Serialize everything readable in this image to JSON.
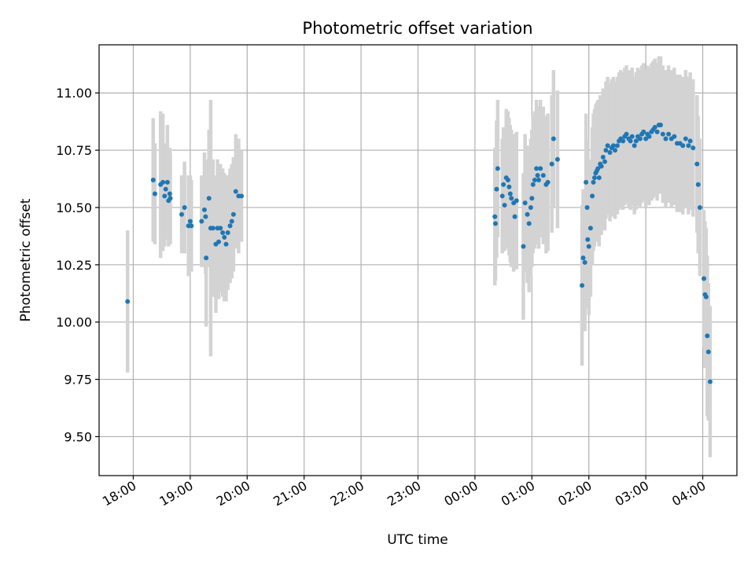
{
  "chart_data": {
    "type": "scatter",
    "title": "Photometric offset variation",
    "xlabel": "UTC time",
    "ylabel": "Photometric offset",
    "xlim": [
      -0.6,
      10.6
    ],
    "ylim": [
      9.33,
      11.21
    ],
    "grid": true,
    "colors": {
      "points": "#1f77b4",
      "errorbars": "#d3d3d3",
      "grid": "#b0b0b0"
    },
    "x_ticks": [
      {
        "v": 0,
        "label": "18:00"
      },
      {
        "v": 1,
        "label": "19:00"
      },
      {
        "v": 2,
        "label": "20:00"
      },
      {
        "v": 3,
        "label": "21:00"
      },
      {
        "v": 4,
        "label": "22:00"
      },
      {
        "v": 5,
        "label": "23:00"
      },
      {
        "v": 6,
        "label": "00:00"
      },
      {
        "v": 7,
        "label": "01:00"
      },
      {
        "v": 8,
        "label": "02:00"
      },
      {
        "v": 9,
        "label": "03:00"
      },
      {
        "v": 10,
        "label": "04:00"
      }
    ],
    "y_ticks": [
      {
        "v": 9.5,
        "label": "9.50"
      },
      {
        "v": 9.75,
        "label": "9.75"
      },
      {
        "v": 10.0,
        "label": "10.00"
      },
      {
        "v": 10.25,
        "label": "10.25"
      },
      {
        "v": 10.5,
        "label": "10.50"
      },
      {
        "v": 10.75,
        "label": "10.75"
      },
      {
        "v": 11.0,
        "label": "11.00"
      }
    ],
    "series": [
      {
        "name": "photometric offset",
        "x_unit": "hours since 18:00 UTC",
        "points": [
          [
            -0.1,
            10.09,
            0.31
          ],
          [
            0.35,
            10.62,
            0.27
          ],
          [
            0.38,
            10.56,
            0.22
          ],
          [
            0.48,
            10.6,
            0.32
          ],
          [
            0.52,
            10.61,
            0.3
          ],
          [
            0.55,
            10.55,
            0.22
          ],
          [
            0.57,
            10.58,
            0.2
          ],
          [
            0.6,
            10.61,
            0.25
          ],
          [
            0.62,
            10.53,
            0.2
          ],
          [
            0.64,
            10.56,
            0.2
          ],
          [
            0.65,
            10.54,
            0.2
          ],
          [
            0.85,
            10.47,
            0.17
          ],
          [
            0.9,
            10.5,
            0.2
          ],
          [
            0.97,
            10.42,
            0.22
          ],
          [
            1.0,
            10.44,
            0.2
          ],
          [
            1.02,
            10.42,
            0.2
          ],
          [
            1.2,
            10.44,
            0.2
          ],
          [
            1.25,
            10.49,
            0.25
          ],
          [
            1.27,
            10.46,
            0.25
          ],
          [
            1.28,
            10.28,
            0.3
          ],
          [
            1.33,
            10.54,
            0.3
          ],
          [
            1.36,
            10.41,
            0.56
          ],
          [
            1.4,
            10.41,
            0.3
          ],
          [
            1.45,
            10.34,
            0.3
          ],
          [
            1.48,
            10.41,
            0.3
          ],
          [
            1.5,
            10.35,
            0.25
          ],
          [
            1.53,
            10.41,
            0.28
          ],
          [
            1.57,
            10.39,
            0.28
          ],
          [
            1.6,
            10.37,
            0.28
          ],
          [
            1.63,
            10.34,
            0.25
          ],
          [
            1.66,
            10.39,
            0.25
          ],
          [
            1.7,
            10.42,
            0.25
          ],
          [
            1.73,
            10.44,
            0.25
          ],
          [
            1.76,
            10.47,
            0.25
          ],
          [
            1.8,
            10.57,
            0.25
          ],
          [
            1.85,
            10.55,
            0.25
          ],
          [
            1.9,
            10.55,
            0.2
          ],
          [
            6.35,
            10.46,
            0.3
          ],
          [
            6.36,
            10.43,
            0.25
          ],
          [
            6.38,
            10.58,
            0.3
          ],
          [
            6.4,
            10.67,
            0.3
          ],
          [
            6.48,
            10.55,
            0.25
          ],
          [
            6.5,
            10.6,
            0.25
          ],
          [
            6.52,
            10.51,
            0.2
          ],
          [
            6.55,
            10.63,
            0.3
          ],
          [
            6.58,
            10.62,
            0.3
          ],
          [
            6.6,
            10.59,
            0.3
          ],
          [
            6.62,
            10.56,
            0.3
          ],
          [
            6.64,
            10.54,
            0.3
          ],
          [
            6.68,
            10.52,
            0.3
          ],
          [
            6.7,
            10.46,
            0.2
          ],
          [
            6.73,
            10.53,
            0.3
          ],
          [
            6.85,
            10.33,
            0.32
          ],
          [
            6.88,
            10.52,
            0.3
          ],
          [
            6.92,
            10.47,
            0.3
          ],
          [
            6.95,
            10.43,
            0.3
          ],
          [
            6.98,
            10.5,
            0.3
          ],
          [
            7.0,
            10.54,
            0.3
          ],
          [
            7.02,
            10.6,
            0.3
          ],
          [
            7.05,
            10.62,
            0.3
          ],
          [
            7.08,
            10.67,
            0.3
          ],
          [
            7.1,
            10.64,
            0.3
          ],
          [
            7.12,
            10.62,
            0.3
          ],
          [
            7.15,
            10.67,
            0.3
          ],
          [
            7.2,
            10.64,
            0.3
          ],
          [
            7.25,
            10.6,
            0.3
          ],
          [
            7.28,
            10.61,
            0.3
          ],
          [
            7.35,
            10.69,
            0.3
          ],
          [
            7.38,
            10.8,
            0.3
          ],
          [
            7.45,
            10.71,
            0.3
          ],
          [
            7.88,
            10.16,
            0.35
          ],
          [
            7.9,
            10.28,
            0.3
          ],
          [
            7.93,
            10.26,
            0.3
          ],
          [
            7.95,
            10.61,
            0.3
          ],
          [
            7.97,
            10.5,
            0.3
          ],
          [
            7.98,
            10.36,
            0.3
          ],
          [
            8.0,
            10.33,
            0.3
          ],
          [
            8.03,
            10.41,
            0.3
          ],
          [
            8.06,
            10.55,
            0.3
          ],
          [
            8.08,
            10.61,
            0.3
          ],
          [
            8.1,
            10.63,
            0.3
          ],
          [
            8.12,
            10.65,
            0.3
          ],
          [
            8.14,
            10.66,
            0.3
          ],
          [
            8.16,
            10.67,
            0.3
          ],
          [
            8.18,
            10.63,
            0.3
          ],
          [
            8.2,
            10.69,
            0.3
          ],
          [
            8.22,
            10.68,
            0.3
          ],
          [
            8.25,
            10.72,
            0.3
          ],
          [
            8.28,
            10.7,
            0.3
          ],
          [
            8.3,
            10.75,
            0.3
          ],
          [
            8.33,
            10.77,
            0.3
          ],
          [
            8.37,
            10.74,
            0.3
          ],
          [
            8.4,
            10.76,
            0.3
          ],
          [
            8.43,
            10.77,
            0.3
          ],
          [
            8.46,
            10.75,
            0.3
          ],
          [
            8.5,
            10.77,
            0.3
          ],
          [
            8.53,
            10.79,
            0.3
          ],
          [
            8.56,
            10.8,
            0.3
          ],
          [
            8.6,
            10.79,
            0.3
          ],
          [
            8.63,
            10.81,
            0.3
          ],
          [
            8.66,
            10.82,
            0.3
          ],
          [
            8.7,
            10.8,
            0.3
          ],
          [
            8.73,
            10.79,
            0.3
          ],
          [
            8.76,
            10.81,
            0.3
          ],
          [
            8.8,
            10.77,
            0.3
          ],
          [
            8.83,
            10.79,
            0.3
          ],
          [
            8.86,
            10.81,
            0.3
          ],
          [
            8.9,
            10.8,
            0.3
          ],
          [
            8.93,
            10.82,
            0.3
          ],
          [
            8.96,
            10.83,
            0.3
          ],
          [
            9.0,
            10.8,
            0.3
          ],
          [
            9.03,
            10.82,
            0.3
          ],
          [
            9.06,
            10.81,
            0.3
          ],
          [
            9.1,
            10.83,
            0.3
          ],
          [
            9.13,
            10.84,
            0.3
          ],
          [
            9.16,
            10.85,
            0.3
          ],
          [
            9.2,
            10.83,
            0.3
          ],
          [
            9.23,
            10.86,
            0.3
          ],
          [
            9.26,
            10.86,
            0.3
          ],
          [
            9.3,
            10.82,
            0.3
          ],
          [
            9.35,
            10.8,
            0.3
          ],
          [
            9.4,
            10.82,
            0.3
          ],
          [
            9.45,
            10.8,
            0.3
          ],
          [
            9.5,
            10.81,
            0.3
          ],
          [
            9.55,
            10.78,
            0.3
          ],
          [
            9.6,
            10.78,
            0.3
          ],
          [
            9.65,
            10.77,
            0.3
          ],
          [
            9.7,
            10.8,
            0.3
          ],
          [
            9.75,
            10.77,
            0.3
          ],
          [
            9.78,
            10.79,
            0.3
          ],
          [
            9.83,
            10.76,
            0.3
          ],
          [
            9.9,
            10.69,
            0.3
          ],
          [
            9.92,
            10.6,
            0.3
          ],
          [
            9.95,
            10.5,
            0.3
          ],
          [
            10.02,
            10.19,
            0.3
          ],
          [
            10.04,
            10.12,
            0.32
          ],
          [
            10.06,
            10.11,
            0.3
          ],
          [
            10.08,
            9.94,
            0.35
          ],
          [
            10.1,
            9.87,
            0.3
          ],
          [
            10.13,
            9.74,
            0.33
          ]
        ]
      }
    ]
  }
}
